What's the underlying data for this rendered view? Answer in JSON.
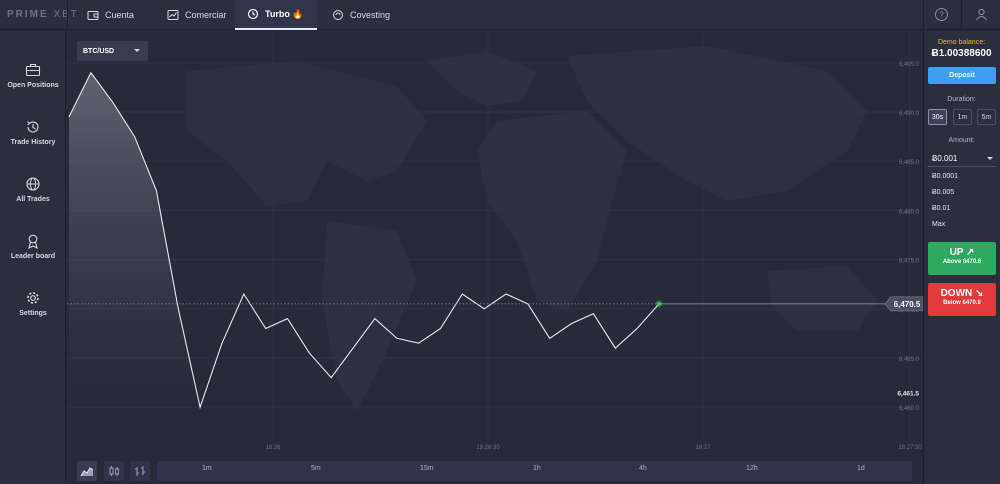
{
  "brand": {
    "logo_main": "PRIME",
    "logo_sub": "XBT"
  },
  "top_tabs": [
    {
      "label": "Cuenta",
      "icon": "wallet-icon"
    },
    {
      "label": "Comerciar",
      "icon": "chart-window-icon"
    },
    {
      "label": "Turbo 🔥",
      "icon": "turbo-clock-icon",
      "active": true
    },
    {
      "label": "Covesting",
      "icon": "covesting-icon"
    }
  ],
  "top_right": {
    "help_icon": "help-icon",
    "user_icon": "user-icon"
  },
  "sidebar": {
    "items": [
      {
        "label": "Open Positions",
        "icon": "briefcase-icon"
      },
      {
        "label": "Trade History",
        "icon": "history-icon"
      },
      {
        "label": "All Trades",
        "icon": "globe-icon"
      },
      {
        "label": "Leader board",
        "icon": "medal-icon"
      },
      {
        "label": "Settings",
        "icon": "gear-icon"
      }
    ]
  },
  "pair": {
    "selected": "BTC/USD"
  },
  "chart": {
    "y_ticks": [
      "6,495.0",
      "6,490.0",
      "6,485.0",
      "6,480.0",
      "6,475.0",
      "6,470.0",
      "6,465.0",
      "6,460.0"
    ],
    "x_ticks": [
      "18:26",
      "18:26:30",
      "18:27",
      "18:27:30"
    ],
    "current_price": "6,470.5",
    "low_marker": "6,461.5",
    "colors": {
      "line": "#e8eaf0",
      "accent": "#3ddc6b"
    }
  },
  "chart_data": {
    "type": "area",
    "title": "",
    "xlabel": "",
    "ylabel": "",
    "ylim": [
      6459,
      6496
    ],
    "x": [
      "18:25:40",
      "18:25:43",
      "18:25:46",
      "18:25:49",
      "18:25:52",
      "18:25:55",
      "18:25:58",
      "18:26:01",
      "18:26:04",
      "18:26:07",
      "18:26:10",
      "18:26:13",
      "18:26:16",
      "18:26:19",
      "18:26:22",
      "18:26:25",
      "18:26:28",
      "18:26:31",
      "18:26:34",
      "18:26:37",
      "18:26:40",
      "18:26:43",
      "18:26:46",
      "18:26:49",
      "18:26:52",
      "18:26:55",
      "18:26:58",
      "18:27:01"
    ],
    "series": [
      {
        "values": [
          6489.5,
          6494.0,
          6491.0,
          6487.5,
          6482.0,
          6470.0,
          6460.0,
          6466.5,
          6471.5,
          6468.0,
          6469.0,
          6465.5,
          6463.0,
          6466.0,
          6469.0,
          6467.0,
          6466.5,
          6468.0,
          6471.5,
          6470.0,
          6471.5,
          6470.5,
          6467.0,
          6468.5,
          6469.5,
          6466.0,
          6468.0,
          6470.5
        ]
      }
    ],
    "current": 6470.5,
    "low": 6461.5
  },
  "bottom": {
    "ranges": [
      "1m",
      "5m",
      "15m",
      "1h",
      "4h",
      "12h",
      "1d"
    ],
    "modes": [
      "line-chart-icon",
      "candles-icon",
      "bars-icon"
    ]
  },
  "right_panel": {
    "demo_label": "Demo balance:",
    "balance": "Ƀ1.00388600",
    "deposit_label": "Deposit",
    "duration_label": "Duration:",
    "durations": [
      "30s",
      "1m",
      "5m"
    ],
    "amount_label": "Amount:",
    "amount_value": "Ƀ0.001",
    "amount_options": [
      "Ƀ0.0001",
      "Ƀ0.005",
      "Ƀ0.01",
      "Max"
    ],
    "up": {
      "label": "UP ↗",
      "sub": "Above 6470.6"
    },
    "down": {
      "label": "DOWN ↘",
      "sub": "Below 6470.6"
    },
    "colors": {
      "up": "#2daa5f",
      "down": "#e4383b",
      "deposit": "#3a9ff1",
      "demo": "#f2b531"
    }
  }
}
